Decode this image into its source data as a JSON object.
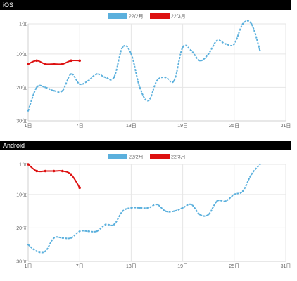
{
  "chart_data": [
    {
      "type": "line",
      "title": "iOS",
      "x_ticks": [
        1,
        7,
        13,
        19,
        25,
        31
      ],
      "x_tick_labels": [
        "1日",
        "7日",
        "13日",
        "19日",
        "25日",
        "31日"
      ],
      "y_ticks": [
        1,
        10,
        20,
        30
      ],
      "y_tick_labels": [
        "1位",
        "10位",
        "20位",
        "30位"
      ],
      "xlim": [
        1,
        31
      ],
      "ylim": [
        1,
        30
      ],
      "y_inverted": true,
      "grid": true,
      "legend_position": "top-center",
      "series": [
        {
          "name": "22/2月",
          "color": "#5bb0dd",
          "style": "dashed",
          "x": [
            1,
            2,
            3,
            4,
            5,
            6,
            7,
            8,
            9,
            10,
            11,
            12,
            13,
            14,
            15,
            16,
            17,
            18,
            19,
            20,
            21,
            22,
            23,
            24,
            25,
            26,
            27,
            28
          ],
          "y": [
            27,
            20,
            20,
            21,
            21,
            16,
            19,
            18,
            16,
            17,
            17,
            8,
            10,
            20,
            24,
            18,
            17,
            18,
            8,
            9,
            12,
            10,
            6,
            7,
            7,
            1,
            1,
            9
          ]
        },
        {
          "name": "22/3月",
          "color": "#dd1111",
          "style": "solid",
          "x": [
            1,
            2,
            3,
            4,
            5,
            6,
            7
          ],
          "y": [
            13,
            12,
            13,
            13,
            13,
            12,
            12
          ]
        }
      ]
    },
    {
      "type": "line",
      "title": "Android",
      "x_ticks": [
        1,
        7,
        13,
        19,
        25,
        31
      ],
      "x_tick_labels": [
        "1日",
        "7日",
        "13日",
        "19日",
        "25日",
        "31日"
      ],
      "y_ticks": [
        1,
        10,
        20,
        30
      ],
      "y_tick_labels": [
        "1位",
        "10位",
        "20位",
        "30位"
      ],
      "xlim": [
        1,
        31
      ],
      "ylim": [
        1,
        30
      ],
      "y_inverted": true,
      "grid": true,
      "legend_position": "top-center",
      "series": [
        {
          "name": "22/2月",
          "color": "#5bb0dd",
          "style": "dashed",
          "x": [
            1,
            2,
            3,
            4,
            5,
            6,
            7,
            8,
            9,
            10,
            11,
            12,
            13,
            14,
            15,
            16,
            17,
            18,
            19,
            20,
            21,
            22,
            23,
            24,
            25,
            26,
            27,
            28
          ],
          "y": [
            25,
            27,
            27,
            23,
            23,
            23,
            21,
            21,
            21,
            19,
            19,
            15,
            14,
            14,
            14,
            13,
            15,
            15,
            14,
            13,
            16,
            16,
            12,
            12,
            10,
            9,
            4,
            1
          ],
          "note": ""
        },
        {
          "name": "22/3月",
          "color": "#dd1111",
          "style": "solid",
          "x": [
            1,
            2,
            3,
            4,
            5,
            6,
            7
          ],
          "y": [
            1,
            3,
            3,
            3,
            3,
            4,
            8
          ]
        }
      ]
    }
  ]
}
